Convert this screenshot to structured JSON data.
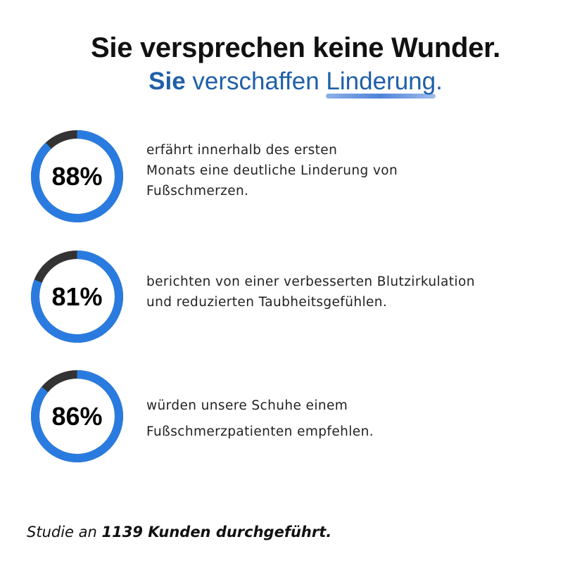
{
  "headline": {
    "line1": "Sie versprechen keine Wunder.",
    "line2_prefix": "Sie",
    "line2_middle": " verschaffen ",
    "line2_highlight": "Linderung",
    "line2_suffix": ".",
    "colors": {
      "dark": "#111111",
      "blue": "#1f5fa8",
      "underline": "#2f6fd4"
    }
  },
  "stats": [
    {
      "percent_label": "88%",
      "value": 0.88,
      "lines": [
        "erfährt innerhalb des ersten",
        "Monats eine deutliche Linderung von",
        "Fußschmerzen."
      ]
    },
    {
      "percent_label": "81%",
      "value": 0.81,
      "lines": [
        "berichten von einer verbesserten Blutzirkulation",
        "und reduzierten Taubheitsgefühlen."
      ]
    },
    {
      "percent_label": "86%",
      "value": 0.86,
      "lines": [
        "würden unsere Schuhe einem",
        " Fußschmerzpatienten empfehlen."
      ]
    }
  ],
  "ring_colors": {
    "progress": "#2a7be0",
    "track": "#333333"
  },
  "footer": {
    "prefix": "Studie an ",
    "bold": "1139 Kunden durchgeführt."
  }
}
